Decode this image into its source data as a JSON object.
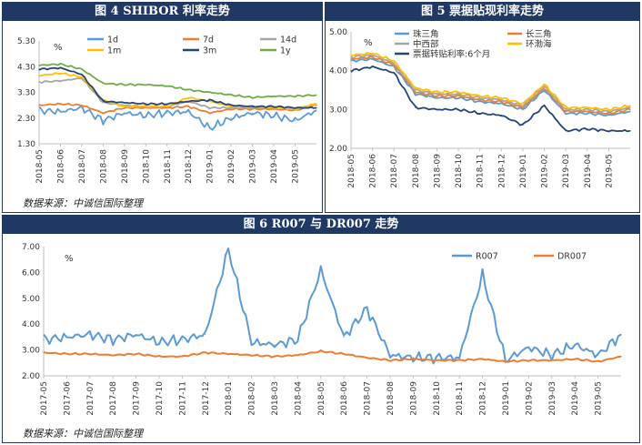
{
  "panels": {
    "p4": {
      "title": "图 4   SHIBOR 利率走势",
      "source": "数据来源：中诚信国际整理"
    },
    "p5": {
      "title": "图 5  票据贴现利率走势"
    },
    "p6": {
      "title": "图 6    R007 与 DR007 走势",
      "source": "数据来源：中诚信国际整理"
    }
  },
  "chart_data": [
    {
      "id": "shibor",
      "type": "line",
      "unit_label": "%",
      "ylim": [
        1.3,
        5.3
      ],
      "yticks": [
        "5.30",
        "4.30",
        "3.30",
        "2.30",
        "1.30"
      ],
      "grid": false,
      "legend": "top",
      "x": [
        "2018-05",
        "2018-06",
        "2018-07",
        "2018-08",
        "2018-09",
        "2018-10",
        "2018-11",
        "2018-12",
        "2019-01",
        "2019-02",
        "2019-03",
        "2019-04",
        "2019-05",
        "2019-06"
      ],
      "xticks": [
        "2018-05",
        "2018-06",
        "2018-07",
        "2018-08",
        "2018-09",
        "2018-10",
        "2018-11",
        "2018-12",
        "2019-01",
        "2019-02",
        "2019-03",
        "2019-04",
        "2019-05"
      ],
      "series": [
        {
          "name": "1d",
          "color": "#5b9bd5",
          "values": [
            2.6,
            2.55,
            2.7,
            2.2,
            2.5,
            2.4,
            2.5,
            2.55,
            1.9,
            2.3,
            2.5,
            2.4,
            2.2,
            2.6
          ]
        },
        {
          "name": "7d",
          "color": "#ed7d31",
          "values": [
            2.8,
            2.85,
            2.8,
            2.5,
            2.7,
            2.7,
            2.7,
            2.75,
            2.5,
            2.65,
            2.65,
            2.65,
            2.6,
            2.8
          ]
        },
        {
          "name": "14d",
          "color": "#a5a5a5",
          "values": [
            3.7,
            3.75,
            3.85,
            2.9,
            2.8,
            2.75,
            2.75,
            2.95,
            2.7,
            2.7,
            2.7,
            2.7,
            2.65,
            2.85
          ]
        },
        {
          "name": "1m",
          "color": "#ffc000",
          "values": [
            3.95,
            4.05,
            3.9,
            3.0,
            2.75,
            2.75,
            2.75,
            3.1,
            2.95,
            2.75,
            2.75,
            2.7,
            2.65,
            2.85
          ]
        },
        {
          "name": "3m",
          "color": "#264478",
          "values": [
            4.2,
            4.25,
            4.0,
            2.95,
            2.9,
            2.85,
            2.85,
            2.95,
            3.0,
            2.8,
            2.75,
            2.75,
            2.7,
            2.7
          ]
        },
        {
          "name": "1y",
          "color": "#70ad47",
          "values": [
            4.35,
            4.4,
            4.2,
            3.65,
            3.6,
            3.6,
            3.55,
            3.4,
            3.3,
            3.2,
            3.1,
            3.15,
            3.15,
            3.2
          ]
        }
      ]
    },
    {
      "id": "bill",
      "type": "line",
      "unit_label": "%",
      "ylim": [
        2.0,
        5.0
      ],
      "yticks": [
        "5.00",
        "4.00",
        "3.00",
        "2.00"
      ],
      "grid": false,
      "legend": "top",
      "x": [
        "2018-05",
        "2018-06",
        "2018-07",
        "2018-08",
        "2018-09",
        "2018-10",
        "2018-11",
        "2018-12",
        "2019-01",
        "2019-02",
        "2019-03",
        "2019-04",
        "2019-05",
        "2019-06"
      ],
      "xticks": [
        "2018-05",
        "2018-06",
        "2018-07",
        "2018-08",
        "2018-09",
        "2018-10",
        "2018-11",
        "2018-12",
        "2019-01",
        "2019-02",
        "2019-03",
        "2019-04",
        "2019-05"
      ],
      "series": [
        {
          "name": "珠三角",
          "color": "#5b9bd5",
          "values": [
            4.25,
            4.3,
            4.1,
            3.4,
            3.3,
            3.3,
            3.2,
            3.15,
            3.0,
            3.5,
            2.9,
            2.9,
            2.85,
            2.95
          ]
        },
        {
          "name": "长三角",
          "color": "#ed7d31",
          "values": [
            4.3,
            4.35,
            4.15,
            3.45,
            3.35,
            3.35,
            3.25,
            3.2,
            3.05,
            3.55,
            2.95,
            2.95,
            2.9,
            3.0
          ]
        },
        {
          "name": "中西部",
          "color": "#a5a5a5",
          "values": [
            4.35,
            4.4,
            4.2,
            3.5,
            3.4,
            3.4,
            3.3,
            3.25,
            3.1,
            3.6,
            3.0,
            3.0,
            2.95,
            3.05
          ]
        },
        {
          "name": "环渤海",
          "color": "#ffc000",
          "values": [
            4.4,
            4.45,
            4.25,
            3.55,
            3.45,
            3.45,
            3.35,
            3.3,
            3.15,
            3.65,
            3.05,
            3.05,
            3.0,
            3.1
          ]
        },
        {
          "name": "票据转贴利率:6个月",
          "color": "#264478",
          "values": [
            4.0,
            4.1,
            3.95,
            3.05,
            3.0,
            3.0,
            2.9,
            2.85,
            2.6,
            3.1,
            2.45,
            2.5,
            2.45,
            2.45
          ]
        }
      ]
    },
    {
      "id": "repo",
      "type": "line",
      "unit_label": "%",
      "ylim": [
        2.0,
        7.0
      ],
      "yticks": [
        "7.00",
        "6.00",
        "5.00",
        "4.00",
        "3.00",
        "2.00"
      ],
      "grid": false,
      "legend": "top-right",
      "x": [
        "2017-05",
        "2017-06",
        "2017-07",
        "2017-08",
        "2017-09",
        "2017-10",
        "2017-11",
        "2017-12",
        "2018-01",
        "2018-02",
        "2018-03",
        "2018-04",
        "2018-05",
        "2018-06",
        "2018-07",
        "2018-08",
        "2018-09",
        "2018-10",
        "2018-11",
        "2018-12",
        "2019-01",
        "2019-02",
        "2019-03",
        "2019-04",
        "2019-05",
        "2019-06"
      ],
      "xticks": [
        "2017-05",
        "2017-06",
        "2017-07",
        "2017-08",
        "2017-09",
        "2017-10",
        "2017-11",
        "2017-12",
        "2018-01",
        "2018-02",
        "2018-03",
        "2018-04",
        "2018-05",
        "2018-06",
        "2018-07",
        "2018-08",
        "2018-09",
        "2018-10",
        "2018-11",
        "2018-12",
        "2019-01",
        "2019-02",
        "2019-03",
        "2019-04",
        "2019-05"
      ],
      "series": [
        {
          "name": "R007",
          "color": "#5b9bd5",
          "values": [
            3.4,
            3.5,
            3.6,
            3.4,
            3.6,
            3.3,
            3.4,
            3.6,
            6.9,
            3.3,
            3.2,
            3.4,
            6.1,
            3.5,
            4.6,
            2.8,
            2.7,
            2.7,
            2.7,
            5.9,
            2.6,
            3.1,
            2.8,
            3.2,
            2.8,
            3.6
          ]
        },
        {
          "name": "DR007",
          "color": "#ed7d31",
          "values": [
            2.9,
            2.85,
            2.85,
            2.8,
            2.85,
            2.75,
            2.75,
            2.9,
            2.85,
            2.8,
            2.75,
            2.8,
            2.95,
            2.85,
            2.7,
            2.6,
            2.65,
            2.6,
            2.6,
            2.65,
            2.55,
            2.6,
            2.6,
            2.65,
            2.55,
            2.75
          ]
        }
      ]
    }
  ]
}
